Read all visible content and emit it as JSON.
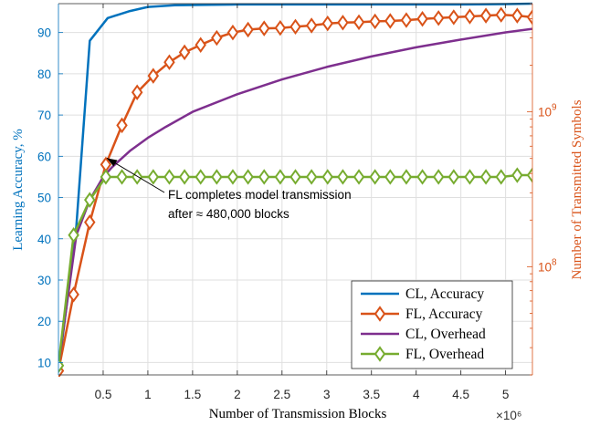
{
  "chart_data": {
    "type": "line",
    "xlabel": "Number of Transmission Blocks",
    "ylabel_left": "Learning Accuracy, %",
    "ylabel_right": "Number of Transmitted Symbols",
    "x_multiplier_label": "×10⁶",
    "xlim": [
      0,
      5.3
    ],
    "ylim_left": [
      7,
      97
    ],
    "ylim_right": [
      20000000,
      5000000000
    ],
    "right_axis_scale": "log",
    "grid": true,
    "legend_position": "bottom-right",
    "x_ticks": [
      0.5,
      1,
      1.5,
      2,
      2.5,
      3,
      3.5,
      4,
      4.5,
      5
    ],
    "x_tick_labels": [
      "0.5",
      "1",
      "1.5",
      "2",
      "2.5",
      "3",
      "3.5",
      "4",
      "4.5",
      "5"
    ],
    "y_left_ticks": [
      10,
      20,
      30,
      40,
      50,
      60,
      70,
      80,
      90
    ],
    "y_left_tick_labels": [
      "10",
      "20",
      "30",
      "40",
      "50",
      "60",
      "70",
      "80",
      "90"
    ],
    "y_right_ticks": [
      100000000,
      1000000000
    ],
    "y_right_tick_labels": [
      {
        "base": "10",
        "exp": "8"
      },
      {
        "base": "10",
        "exp": "9"
      }
    ],
    "annotation": {
      "lines": [
        "FL completes model transmission",
        "after ≈ 480,000 blocks"
      ],
      "arrow_to": [
        0.5,
        60
      ]
    },
    "series": [
      {
        "name": "CL, Accuracy",
        "axis": "left",
        "color": "#0072BD",
        "marker": "none",
        "x": [
          0,
          0.2,
          0.35,
          0.55,
          0.8,
          1.0,
          1.3,
          1.6,
          2.0,
          2.5,
          3.0,
          3.5,
          4.0,
          4.5,
          5.0,
          5.3
        ],
        "y": [
          8,
          43,
          88,
          93.5,
          95.2,
          96.2,
          96.6,
          96.7,
          96.8,
          96.8,
          96.8,
          96.8,
          96.8,
          96.8,
          96.9,
          97
        ]
      },
      {
        "name": "FL, Accuracy",
        "axis": "left",
        "color": "#D95319",
        "marker": "diamond",
        "x": [
          0,
          0.17,
          0.35,
          0.53,
          0.71,
          0.88,
          1.06,
          1.24,
          1.41,
          1.59,
          1.77,
          1.95,
          2.12,
          2.3,
          2.48,
          2.65,
          2.83,
          3.01,
          3.18,
          3.36,
          3.54,
          3.71,
          3.89,
          4.07,
          4.25,
          4.42,
          4.6,
          4.78,
          4.95,
          5.13,
          5.3
        ],
        "y": [
          8,
          26.5,
          44,
          58,
          67.5,
          75.5,
          79.5,
          82.8,
          85.2,
          87,
          88.7,
          90,
          90.7,
          91,
          91.1,
          91.4,
          91.7,
          92.2,
          92.4,
          92.5,
          92.7,
          92.8,
          93,
          93.3,
          93.5,
          93.7,
          93.9,
          94.1,
          94.3,
          94.1,
          93.7
        ]
      },
      {
        "name": "CL, Overhead",
        "axis": "right",
        "color": "#7E2F8E",
        "marker": "none",
        "x": [
          0,
          0.2,
          0.35,
          0.5,
          0.6,
          0.8,
          1.0,
          1.2,
          1.5,
          2.0,
          2.5,
          3.0,
          3.5,
          4.0,
          4.5,
          5.0,
          5.3
        ],
        "y": [
          23000000,
          160000000,
          270000000,
          380000000,
          440000000,
          560000000,
          680000000,
          800000000,
          1000000000,
          1300000000,
          1620000000,
          1950000000,
          2280000000,
          2610000000,
          2930000000,
          3260000000,
          3440000000
        ]
      },
      {
        "name": "FL, Overhead",
        "axis": "right",
        "color": "#77AC30",
        "marker": "diamond",
        "x": [
          0,
          0.17,
          0.35,
          0.53,
          0.71,
          0.88,
          1.06,
          1.24,
          1.41,
          1.59,
          1.77,
          1.95,
          2.12,
          2.3,
          2.48,
          2.65,
          2.83,
          3.01,
          3.18,
          3.36,
          3.54,
          3.71,
          3.89,
          4.07,
          4.25,
          4.42,
          4.6,
          4.78,
          4.95,
          5.13,
          5.3
        ],
        "y": [
          23000000,
          160000000,
          270000000,
          380000000,
          380000000,
          380000000,
          380000000,
          380000000,
          380000000,
          380000000,
          380000000,
          380000000,
          380000000,
          380000000,
          380000000,
          380000000,
          380000000,
          380000000,
          380000000,
          380000000,
          380000000,
          380000000,
          380000000,
          380000000,
          380000000,
          380000000,
          380000000,
          380000000,
          380000000,
          390000000,
          390000000
        ]
      }
    ]
  }
}
